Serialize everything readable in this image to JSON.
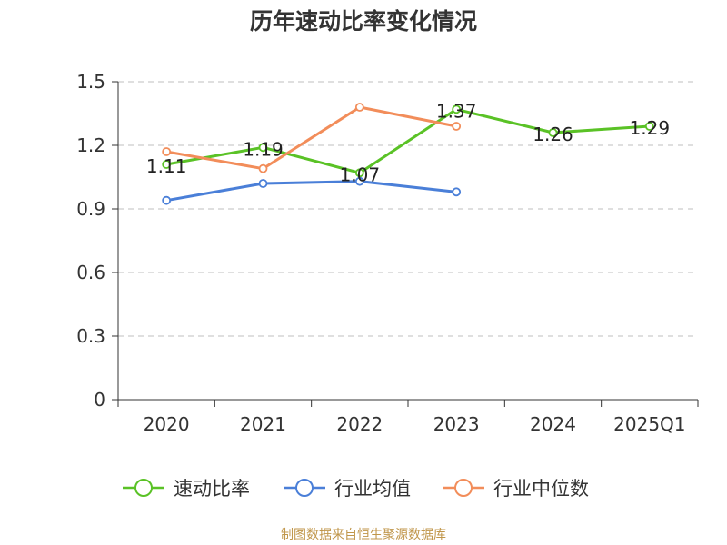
{
  "chart_data": {
    "type": "line",
    "title": "历年速动比率变化情况",
    "categories": [
      "2020",
      "2021",
      "2022",
      "2023",
      "2024",
      "2025Q1"
    ],
    "ylim": [
      0,
      1.5
    ],
    "yticks": [
      "0",
      "0.3",
      "0.6",
      "0.9",
      "1.2",
      "1.5"
    ],
    "grid": true,
    "legend_position": "bottom",
    "series": [
      {
        "name": "速动比率",
        "color": "#5ac226",
        "values": [
          1.11,
          1.19,
          1.07,
          1.37,
          1.26,
          1.29
        ],
        "labels": [
          "1.11",
          "1.19",
          "1.07",
          "1.37",
          "1.26",
          "1.29"
        ]
      },
      {
        "name": "行业均值",
        "color": "#4a7fd8",
        "values": [
          0.94,
          1.02,
          1.03,
          0.98,
          null,
          null
        ]
      },
      {
        "name": "行业中位数",
        "color": "#f28d5a",
        "values": [
          1.17,
          1.09,
          1.38,
          1.29,
          null,
          null
        ]
      }
    ]
  },
  "source_text": "制图数据来自恒生聚源数据库"
}
